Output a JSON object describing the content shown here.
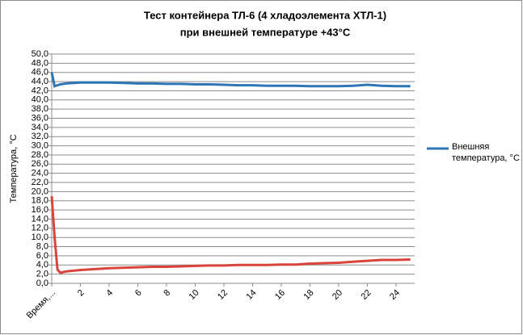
{
  "chart_data": {
    "type": "line",
    "title": [
      "Тест контейнера ТЛ-6 (4 хладоэлемента ХТЛ-1)",
      "при внешней температуре +43°С"
    ],
    "y_label": "Температура, °С",
    "x": [
      0,
      0.2,
      0.4,
      0.6,
      1,
      2,
      3,
      4,
      5,
      6,
      7,
      8,
      9,
      10,
      11,
      12,
      13,
      14,
      15,
      16,
      17,
      18,
      19,
      20,
      21,
      22,
      23,
      24,
      25
    ],
    "series": [
      {
        "name": "Внешняя температура, °С",
        "color": "#2e75b6",
        "legend": true,
        "values": [
          46,
          43,
          43.2,
          43.4,
          43.6,
          43.8,
          43.8,
          43.8,
          43.7,
          43.6,
          43.6,
          43.5,
          43.5,
          43.4,
          43.4,
          43.3,
          43.2,
          43.2,
          43.1,
          43.1,
          43.1,
          43.0,
          43.0,
          43.0,
          43.1,
          43.3,
          43.1,
          43.0,
          43.0
        ]
      },
      {
        "color": "#d9433a",
        "legend": false,
        "values": [
          19,
          10,
          3,
          2.3,
          2.6,
          2.9,
          3.1,
          3.3,
          3.4,
          3.5,
          3.6,
          3.6,
          3.7,
          3.8,
          3.9,
          3.9,
          4.0,
          4.0,
          4.0,
          4.1,
          4.1,
          4.3,
          4.4,
          4.5,
          4.7,
          4.9,
          5.1,
          5.1,
          5.2
        ]
      }
    ],
    "xlim": [
      0,
      25.3
    ],
    "xticks": [
      {
        "value": 0,
        "label": "Время,..."
      },
      2,
      4,
      6,
      8,
      10,
      12,
      14,
      16,
      18,
      20,
      22,
      24
    ],
    "ylim": [
      0,
      50
    ],
    "yticks": [
      {
        "value": 0,
        "label": "0,0"
      },
      {
        "value": 2,
        "label": "2,0"
      },
      {
        "value": 4,
        "label": "4,0"
      },
      {
        "value": 6,
        "label": "6,0"
      },
      {
        "value": 8,
        "label": "8,0"
      },
      {
        "value": 10,
        "label": "10,0"
      },
      {
        "value": 12,
        "label": "12,0"
      },
      {
        "value": 14,
        "label": "14,0"
      },
      {
        "value": 16,
        "label": "16,0"
      },
      {
        "value": 18,
        "label": "18,0"
      },
      {
        "value": 20,
        "label": "20,0"
      },
      {
        "value": 22,
        "label": "22,0"
      },
      {
        "value": 24,
        "label": "24,0"
      },
      {
        "value": 26,
        "label": "26,0"
      },
      {
        "value": 28,
        "label": "28,0"
      },
      {
        "value": 30,
        "label": "30,0"
      },
      {
        "value": 32,
        "label": "32,0"
      },
      {
        "value": 34,
        "label": "34,0"
      },
      {
        "value": 36,
        "label": "36,0"
      },
      {
        "value": 38,
        "label": "38,0"
      },
      {
        "value": 40,
        "label": "40,0"
      },
      {
        "value": 42,
        "label": "42,0"
      },
      {
        "value": 44,
        "label": "44,0"
      },
      {
        "value": 46,
        "label": "46,0"
      },
      {
        "value": 48,
        "label": "48,0"
      },
      {
        "value": 50,
        "label": "50,0"
      }
    ],
    "grid": true
  }
}
